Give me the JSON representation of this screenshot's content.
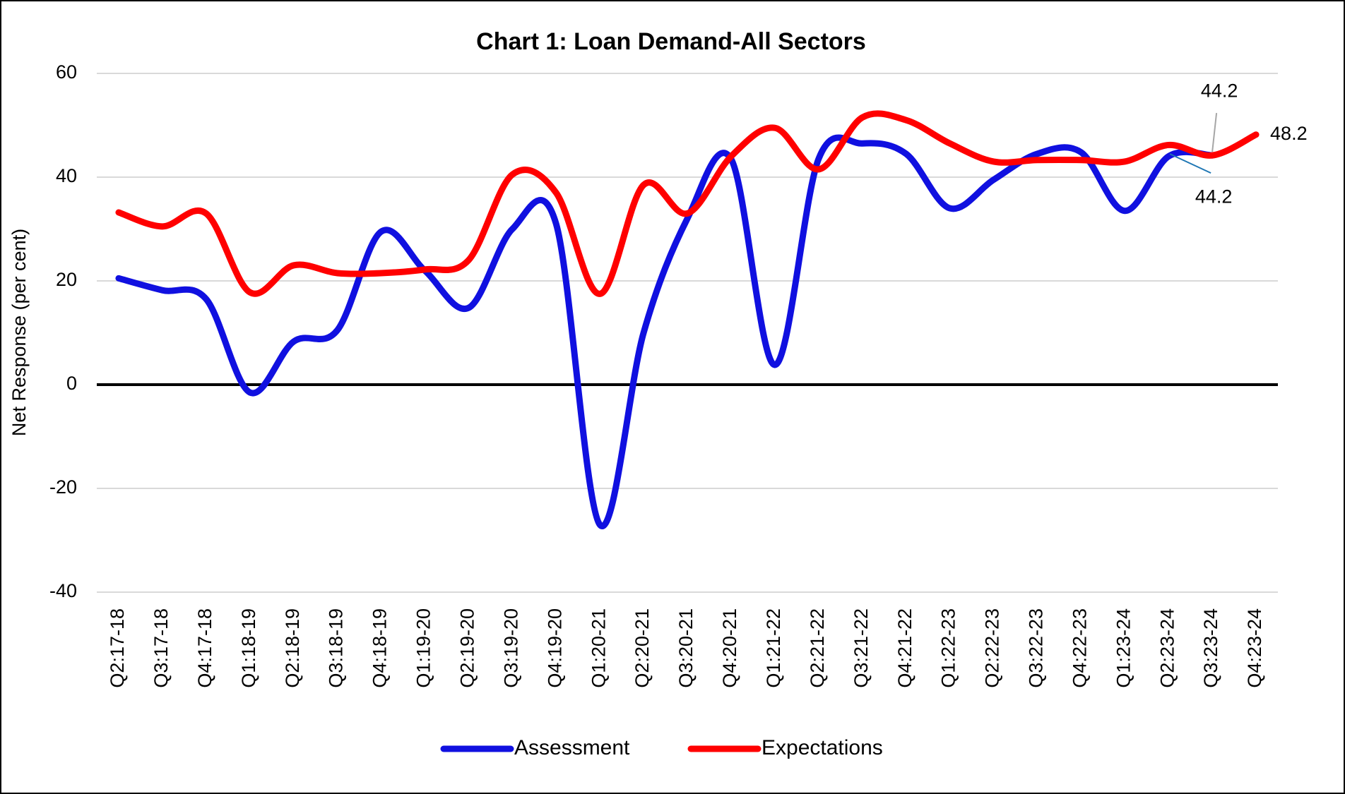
{
  "chart_data": {
    "type": "line",
    "title": "Chart 1: Loan Demand-All Sectors",
    "y_label": "Net Response (per cent)",
    "categories": [
      "Q2:17-18",
      "Q3:17-18",
      "Q4:17-18",
      "Q1:18-19",
      "Q2:18-19",
      "Q3:18-19",
      "Q4:18-19",
      "Q1:19-20",
      "Q2:19-20",
      "Q3:19-20",
      "Q4:19-20",
      "Q1:20-21",
      "Q2:20-21",
      "Q3:20-21",
      "Q4:20-21",
      "Q1:21-22",
      "Q2:21-22",
      "Q3:21-22",
      "Q4:21-22",
      "Q1:22-23",
      "Q2:22-23",
      "Q3:22-23",
      "Q4:22-23",
      "Q1:23-24",
      "Q2:23-24",
      "Q3:23-24",
      "Q4:23-24"
    ],
    "series": [
      {
        "name": "Assessment",
        "color": "#1010e0",
        "values": [
          20.5,
          18.2,
          16.5,
          -1.5,
          8.3,
          10.5,
          29.5,
          22,
          14.8,
          30,
          31,
          -27,
          10,
          32,
          43.5,
          3.8,
          43.5,
          46.5,
          44.5,
          34,
          39.5,
          44.5,
          44.8,
          33.5,
          44,
          44.2,
          null
        ],
        "value_labels": [
          null,
          null,
          null,
          null,
          null,
          null,
          null,
          null,
          null,
          null,
          null,
          null,
          null,
          null,
          null,
          null,
          null,
          null,
          null,
          null,
          null,
          null,
          null,
          null,
          null,
          "44.2",
          null
        ]
      },
      {
        "name": "Expectations",
        "color": "#ff0000",
        "values": [
          33.2,
          30.5,
          33,
          17.8,
          23,
          21.5,
          21.5,
          22.2,
          24,
          40.5,
          37,
          17.5,
          38.5,
          33,
          44,
          49.5,
          41.5,
          51.5,
          51,
          46.5,
          43,
          43.3,
          43.3,
          43,
          46.2,
          44.2,
          48.2
        ],
        "value_labels": [
          null,
          null,
          null,
          null,
          null,
          null,
          null,
          null,
          null,
          null,
          null,
          null,
          null,
          null,
          null,
          null,
          null,
          null,
          null,
          null,
          null,
          null,
          null,
          null,
          null,
          "44.2",
          "48.2"
        ]
      }
    ],
    "ylim": [
      -40,
      60
    ],
    "yticks": [
      -40,
      -20,
      0,
      20,
      40,
      60
    ],
    "grid": true,
    "legend": "bottom"
  }
}
